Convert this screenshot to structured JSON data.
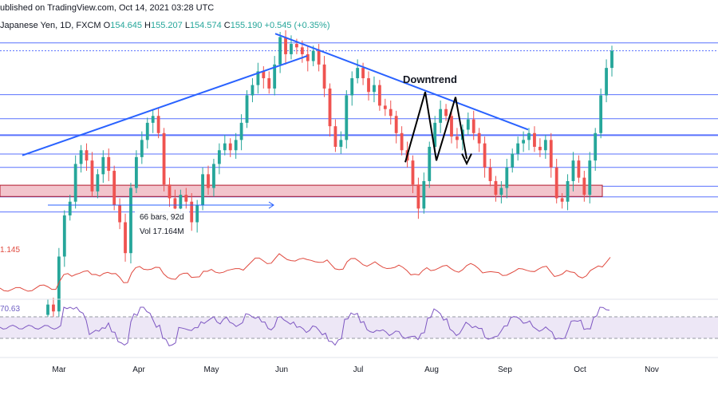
{
  "header": {
    "published": "ublished on TradingView.com, Oct 14, 2021 03:28 UTC",
    "symbol": "Japanese Yen, 1D, FXCM",
    "open_label": "O",
    "open": "154.645",
    "high_label": "H",
    "high": "155.207",
    "low_label": "L",
    "low": "154.574",
    "close_label": "C",
    "close": "155.190",
    "change": "+0.545 (+0.35%)"
  },
  "annotations": {
    "downtrend": "Downtrend",
    "measure_bars": "66 bars, 92d",
    "measure_vol": "Vol 17.164M"
  },
  "indicators": {
    "ind1_value": "1.145",
    "rsi_value": "70.63"
  },
  "colors": {
    "up": "#26a69a",
    "down": "#ef5350",
    "trendline": "#2962ff",
    "hline": "#3d5afe",
    "zone_fill": "#f2c4cc",
    "zone_border": "#b2182b",
    "ind1_line": "#e04a3f",
    "rsi_line": "#7e57c2",
    "rsi_band": "#ede7f6"
  },
  "chart_data": {
    "type": "candlestick",
    "x_axis_labels": [
      "Mar",
      "Apr",
      "May",
      "Jun",
      "Jul",
      "Aug",
      "Sep",
      "Oct",
      "Nov"
    ],
    "bars": [
      [
        0,
        147.8
      ],
      [
        1,
        147.6
      ],
      [
        2,
        149.2
      ],
      [
        3,
        150.4
      ],
      [
        4,
        150.8
      ],
      [
        5,
        151.9
      ],
      [
        6,
        152.3
      ],
      [
        7,
        152.0
      ],
      [
        8,
        151.1
      ],
      [
        9,
        151.6
      ],
      [
        10,
        152.1
      ],
      [
        11,
        151.7
      ],
      [
        12,
        150.7
      ],
      [
        13,
        150.2
      ],
      [
        14,
        149.3
      ],
      [
        15,
        151.2
      ],
      [
        16,
        152.1
      ],
      [
        17,
        152.6
      ],
      [
        18,
        153.1
      ],
      [
        19,
        153.3
      ],
      [
        20,
        152.8
      ],
      [
        21,
        151.3
      ],
      [
        22,
        150.9
      ],
      [
        23,
        150.6
      ],
      [
        24,
        151.0
      ],
      [
        25,
        150.8
      ],
      [
        26,
        150.2
      ],
      [
        27,
        150.7
      ],
      [
        28,
        151.6
      ],
      [
        29,
        151.2
      ],
      [
        30,
        151.9
      ],
      [
        31,
        152.3
      ],
      [
        32,
        152.5
      ],
      [
        33,
        152.3
      ],
      [
        34,
        152.6
      ],
      [
        35,
        153.1
      ],
      [
        36,
        153.9
      ],
      [
        37,
        154.2
      ],
      [
        38,
        154.6
      ],
      [
        39,
        154.4
      ],
      [
        40,
        154.1
      ],
      [
        41,
        154.8
      ],
      [
        42,
        155.6
      ],
      [
        43,
        155.1
      ],
      [
        44,
        155.4
      ],
      [
        45,
        155.3
      ],
      [
        46,
        155.1
      ],
      [
        47,
        154.9
      ],
      [
        48,
        155.2
      ],
      [
        49,
        154.8
      ],
      [
        50,
        154.1
      ],
      [
        51,
        153.0
      ],
      [
        52,
        152.4
      ],
      [
        53,
        152.6
      ],
      [
        54,
        153.9
      ],
      [
        55,
        154.4
      ],
      [
        56,
        154.7
      ],
      [
        57,
        154.4
      ],
      [
        58,
        154.0
      ],
      [
        59,
        154.2
      ],
      [
        60,
        153.6
      ],
      [
        61,
        153.5
      ],
      [
        62,
        153.3
      ],
      [
        63,
        152.8
      ],
      [
        64,
        152.3
      ],
      [
        65,
        152.0
      ],
      [
        66,
        151.3
      ],
      [
        67,
        150.6
      ],
      [
        68,
        151.4
      ],
      [
        69,
        152.4
      ],
      [
        70,
        153.1
      ],
      [
        71,
        153.5
      ],
      [
        72,
        153.3
      ],
      [
        73,
        152.7
      ],
      [
        74,
        152.6
      ],
      [
        75,
        152.9
      ],
      [
        76,
        153.2
      ],
      [
        77,
        152.8
      ],
      [
        78,
        152.5
      ],
      [
        79,
        151.8
      ],
      [
        80,
        151.4
      ],
      [
        81,
        151.0
      ],
      [
        82,
        151.2
      ],
      [
        83,
        151.8
      ],
      [
        84,
        152.2
      ],
      [
        85,
        152.5
      ],
      [
        86,
        152.6
      ],
      [
        87,
        152.8
      ],
      [
        88,
        152.4
      ],
      [
        89,
        152.3
      ],
      [
        90,
        152.6
      ],
      [
        91,
        151.8
      ],
      [
        92,
        150.9
      ],
      [
        93,
        150.8
      ],
      [
        94,
        151.4
      ],
      [
        95,
        152.0
      ],
      [
        96,
        151.5
      ],
      [
        97,
        151.0
      ],
      [
        98,
        152.0
      ],
      [
        99,
        152.8
      ],
      [
        100,
        153.9
      ],
      [
        101,
        154.7
      ],
      [
        102,
        155.2
      ]
    ],
    "price_levels": [
      155.43,
      155.2,
      153.92,
      153.22,
      152.74,
      152.19,
      151.8,
      151.25,
      150.94,
      150.5
    ],
    "support_zone": [
      150.95,
      151.28
    ],
    "indicator1_current": 1.145,
    "rsi_current": 70.63,
    "rsi_levels": [
      70,
      30
    ]
  }
}
